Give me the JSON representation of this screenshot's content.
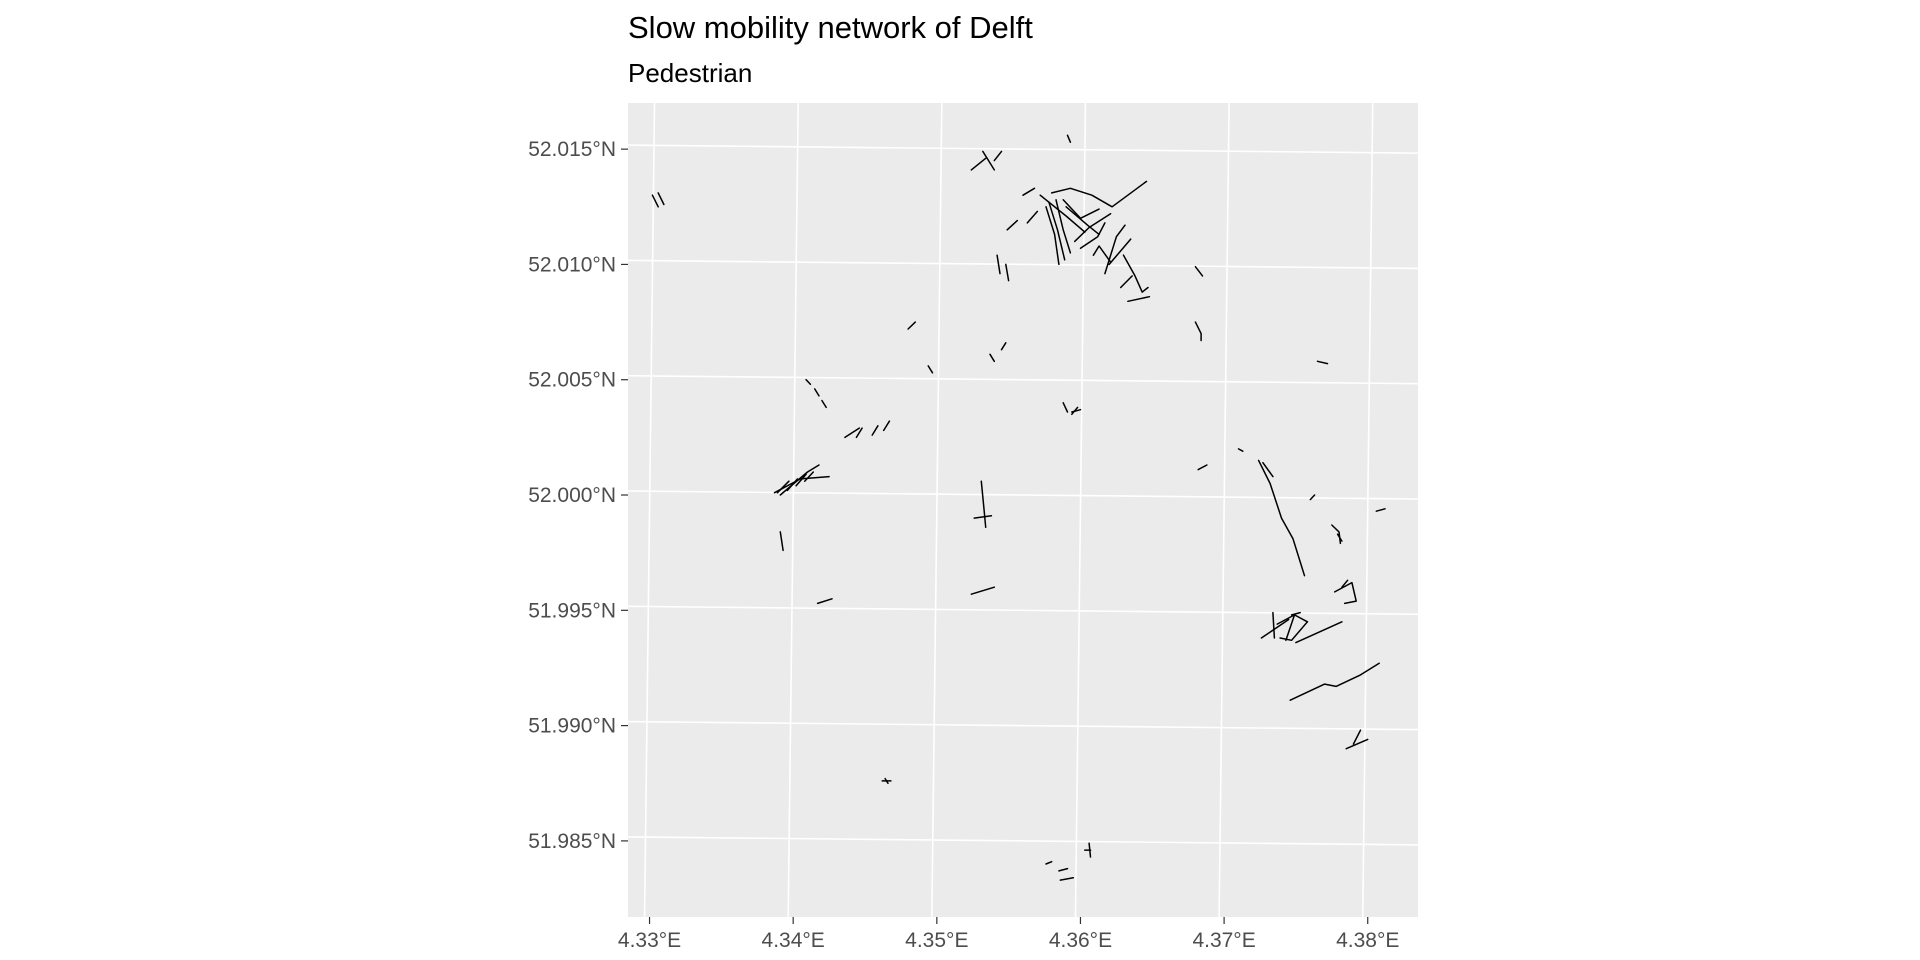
{
  "title": "Slow mobility network of Delft",
  "subtitle": "Pedestrian",
  "colors": {
    "panel": "#ebebeb",
    "grid": "#ffffff",
    "ink": "#000000",
    "axis_text": "#4d4d4d",
    "tick": "#333333"
  },
  "chart_data": {
    "type": "map",
    "grid": true,
    "xlim": [
      4.3285,
      4.3835
    ],
    "ylim": [
      51.9817,
      52.017
    ],
    "x_ticks": [
      {
        "value": 4.33,
        "label": "4.33°E"
      },
      {
        "value": 4.34,
        "label": "4.34°E"
      },
      {
        "value": 4.35,
        "label": "4.35°E"
      },
      {
        "value": 4.36,
        "label": "4.36°E"
      },
      {
        "value": 4.37,
        "label": "4.37°E"
      },
      {
        "value": 4.38,
        "label": "4.38°E"
      }
    ],
    "y_ticks": [
      {
        "value": 52.015,
        "label": "52.015°N"
      },
      {
        "value": 52.01,
        "label": "52.010°N"
      },
      {
        "value": 52.005,
        "label": "52.005°N"
      },
      {
        "value": 52.0,
        "label": "52.000°N"
      },
      {
        "value": 51.995,
        "label": "51.995°N"
      },
      {
        "value": 51.99,
        "label": "51.990°N"
      },
      {
        "value": 51.985,
        "label": "51.985°N"
      }
    ],
    "paths": [
      [
        [
          4.3302,
          52.013
        ],
        [
          4.3306,
          52.0125
        ]
      ],
      [
        [
          4.3306,
          52.0131
        ],
        [
          4.331,
          52.0126
        ]
      ],
      [
        [
          4.3524,
          52.0141
        ],
        [
          4.3534,
          52.0146
        ]
      ],
      [
        [
          4.3532,
          52.0149
        ],
        [
          4.354,
          52.0141
        ]
      ],
      [
        [
          4.354,
          52.0145
        ],
        [
          4.3545,
          52.0149
        ]
      ],
      [
        [
          4.3591,
          52.0156
        ],
        [
          4.3593,
          52.0153
        ]
      ],
      [
        [
          4.3572,
          52.013
        ],
        [
          4.359,
          52.0121
        ],
        [
          4.3603,
          52.0114
        ]
      ],
      [
        [
          4.358,
          52.0131
        ],
        [
          4.3593,
          52.0133
        ],
        [
          4.3608,
          52.013
        ],
        [
          4.3622,
          52.0125
        ],
        [
          4.3646,
          52.0136
        ]
      ],
      [
        [
          4.3578,
          52.0127
        ],
        [
          4.3584,
          52.0115
        ],
        [
          4.3589,
          52.0102
        ]
      ],
      [
        [
          4.3576,
          52.0125
        ],
        [
          4.3582,
          52.0113
        ],
        [
          4.3585,
          52.01
        ]
      ],
      [
        [
          4.3583,
          52.0128
        ],
        [
          4.3588,
          52.0115
        ],
        [
          4.3593,
          52.0105
        ]
      ],
      [
        [
          4.3588,
          52.0128
        ],
        [
          4.36,
          52.012
        ],
        [
          4.3613,
          52.0124
        ]
      ],
      [
        [
          4.359,
          52.0125
        ],
        [
          4.3605,
          52.0117
        ],
        [
          4.3613,
          52.0113
        ]
      ],
      [
        [
          4.3596,
          52.011
        ],
        [
          4.3606,
          52.0116
        ],
        [
          4.3621,
          52.0122
        ]
      ],
      [
        [
          4.36,
          52.0107
        ],
        [
          4.3612,
          52.0112
        ],
        [
          4.3617,
          52.0118
        ]
      ],
      [
        [
          4.3609,
          52.0104
        ],
        [
          4.3613,
          52.0108
        ],
        [
          4.3621,
          52.0101
        ]
      ],
      [
        [
          4.3617,
          52.0096
        ],
        [
          4.3625,
          52.0112
        ],
        [
          4.3631,
          52.0117
        ]
      ],
      [
        [
          4.362,
          52.01
        ],
        [
          4.3635,
          52.0111
        ]
      ],
      [
        [
          4.363,
          52.0104
        ],
        [
          4.3638,
          52.0095
        ],
        [
          4.3643,
          52.0088
        ],
        [
          4.3647,
          52.009
        ]
      ],
      [
        [
          4.3628,
          52.009
        ],
        [
          4.3636,
          52.0095
        ]
      ],
      [
        [
          4.3633,
          52.0084
        ],
        [
          4.3648,
          52.0086
        ]
      ],
      [
        [
          4.3563,
          52.0118
        ],
        [
          4.357,
          52.0123
        ]
      ],
      [
        [
          4.356,
          52.013
        ],
        [
          4.3568,
          52.0133
        ]
      ],
      [
        [
          4.3549,
          52.0115
        ],
        [
          4.3556,
          52.0119
        ]
      ],
      [
        [
          4.3542,
          52.0104
        ],
        [
          4.3544,
          52.0096
        ]
      ],
      [
        [
          4.3548,
          52.01
        ],
        [
          4.355,
          52.0093
        ]
      ],
      [
        [
          4.348,
          52.0072
        ],
        [
          4.3485,
          52.0075
        ]
      ],
      [
        [
          4.3545,
          52.0063
        ],
        [
          4.3548,
          52.0066
        ]
      ],
      [
        [
          4.3537,
          52.0061
        ],
        [
          4.354,
          52.0058
        ]
      ],
      [
        [
          4.3494,
          52.0056
        ],
        [
          4.3497,
          52.0053
        ]
      ],
      [
        [
          4.368,
          52.0099
        ],
        [
          4.3685,
          52.0095
        ]
      ],
      [
        [
          4.368,
          52.0075
        ],
        [
          4.3684,
          52.007
        ],
        [
          4.3684,
          52.0067
        ]
      ],
      [
        [
          4.3765,
          52.0058
        ],
        [
          4.3772,
          52.0057
        ]
      ],
      [
        [
          4.3588,
          52.004
        ],
        [
          4.3591,
          52.0036
        ]
      ],
      [
        [
          4.3594,
          52.0036
        ],
        [
          4.36,
          52.0037
        ]
      ],
      [
        [
          4.3594,
          52.0035
        ],
        [
          4.3598,
          52.0038
        ]
      ],
      [
        [
          4.3682,
          52.0011
        ],
        [
          4.3688,
          52.0013
        ]
      ],
      [
        [
          4.371,
          52.002
        ],
        [
          4.3713,
          52.0019
        ]
      ],
      [
        [
          4.3409,
          52.005
        ],
        [
          4.3412,
          52.0048
        ]
      ],
      [
        [
          4.3415,
          52.0046
        ],
        [
          4.3418,
          52.0043
        ]
      ],
      [
        [
          4.342,
          52.0041
        ],
        [
          4.3423,
          52.0038
        ]
      ],
      [
        [
          4.3436,
          52.0025
        ],
        [
          4.3446,
          52.0029
        ]
      ],
      [
        [
          4.3444,
          52.0025
        ],
        [
          4.3448,
          52.0029
        ]
      ],
      [
        [
          4.3455,
          52.0026
        ],
        [
          4.3459,
          52.003
        ]
      ],
      [
        [
          4.3463,
          52.0028
        ],
        [
          4.3467,
          52.0032
        ]
      ],
      [
        [
          4.3387,
          52.0001
        ],
        [
          4.3405,
          52.0007
        ],
        [
          4.3425,
          52.0008
        ]
      ],
      [
        [
          4.3391,
          52.0
        ],
        [
          4.341,
          52.001
        ],
        [
          4.3418,
          52.0013
        ]
      ],
      [
        [
          4.3389,
          52.0001
        ],
        [
          4.3397,
          52.0006
        ]
      ],
      [
        [
          4.3396,
          52.0002
        ],
        [
          4.3403,
          52.0007
        ]
      ],
      [
        [
          4.3402,
          52.0004
        ],
        [
          4.3409,
          52.0009
        ]
      ],
      [
        [
          4.3408,
          52.0006
        ],
        [
          4.3414,
          52.001
        ]
      ],
      [
        [
          4.3391,
          51.9984
        ],
        [
          4.3393,
          51.9976
        ]
      ],
      [
        [
          4.3417,
          51.9953
        ],
        [
          4.3427,
          51.9955
        ]
      ],
      [
        [
          4.3531,
          52.0006
        ],
        [
          4.3533,
          51.9993
        ],
        [
          4.3534,
          51.9986
        ]
      ],
      [
        [
          4.3526,
          51.999
        ],
        [
          4.3538,
          51.9991
        ]
      ],
      [
        [
          4.3524,
          51.9957
        ],
        [
          4.354,
          51.996
        ]
      ],
      [
        [
          4.3724,
          52.0015
        ],
        [
          4.3732,
          52.0005
        ],
        [
          4.374,
          51.999
        ],
        [
          4.3748,
          51.9981
        ],
        [
          4.3753,
          51.9971
        ],
        [
          4.3756,
          51.9965
        ]
      ],
      [
        [
          4.3727,
          52.0014
        ],
        [
          4.3734,
          52.0008
        ]
      ],
      [
        [
          4.376,
          51.9998
        ],
        [
          4.3763,
          52.0
        ]
      ],
      [
        [
          4.3775,
          51.9987
        ],
        [
          4.378,
          51.9984
        ],
        [
          4.3781,
          51.9979
        ]
      ],
      [
        [
          4.3779,
          51.9983
        ],
        [
          4.3782,
          51.998
        ]
      ],
      [
        [
          4.3806,
          51.9993
        ],
        [
          4.3812,
          51.9994
        ]
      ],
      [
        [
          4.3777,
          51.9958
        ],
        [
          4.3789,
          51.9962
        ],
        [
          4.3792,
          51.9954
        ],
        [
          4.3784,
          51.9953
        ]
      ],
      [
        [
          4.3782,
          51.996
        ],
        [
          4.3786,
          51.9963
        ]
      ],
      [
        [
          4.3734,
          51.9949
        ],
        [
          4.3735,
          51.9938
        ]
      ],
      [
        [
          4.3726,
          51.9938
        ],
        [
          4.3745,
          51.9946
        ]
      ],
      [
        [
          4.3737,
          51.9944
        ],
        [
          4.3749,
          51.9948
        ],
        [
          4.3758,
          51.9945
        ]
      ],
      [
        [
          4.3739,
          51.9938
        ],
        [
          4.3747,
          51.9937
        ],
        [
          4.3758,
          51.9945
        ]
      ],
      [
        [
          4.3743,
          51.9937
        ],
        [
          4.3749,
          51.9948
        ]
      ],
      [
        [
          4.375,
          51.9936
        ],
        [
          4.3782,
          51.9945
        ]
      ],
      [
        [
          4.3747,
          51.9948
        ],
        [
          4.3753,
          51.9949
        ]
      ],
      [
        [
          4.3746,
          51.9911
        ],
        [
          4.377,
          51.9918
        ],
        [
          4.3778,
          51.9917
        ],
        [
          4.3795,
          51.9922
        ],
        [
          4.3808,
          51.9927
        ]
      ],
      [
        [
          4.3785,
          51.989
        ],
        [
          4.38,
          51.9894
        ]
      ],
      [
        [
          4.379,
          51.9892
        ],
        [
          4.3795,
          51.9898
        ]
      ],
      [
        [
          4.3462,
          51.9876
        ],
        [
          4.3468,
          51.9876
        ]
      ],
      [
        [
          4.3464,
          51.9877
        ],
        [
          4.3466,
          51.9875
        ]
      ],
      [
        [
          4.3606,
          51.9849
        ],
        [
          4.3607,
          51.9843
        ]
      ],
      [
        [
          4.3603,
          51.9846
        ],
        [
          4.3607,
          51.9846
        ]
      ],
      [
        [
          4.3576,
          51.984
        ],
        [
          4.358,
          51.9841
        ]
      ],
      [
        [
          4.3585,
          51.9837
        ],
        [
          4.3591,
          51.9838
        ]
      ],
      [
        [
          4.3586,
          51.9833
        ],
        [
          4.3595,
          51.9834
        ]
      ]
    ]
  }
}
